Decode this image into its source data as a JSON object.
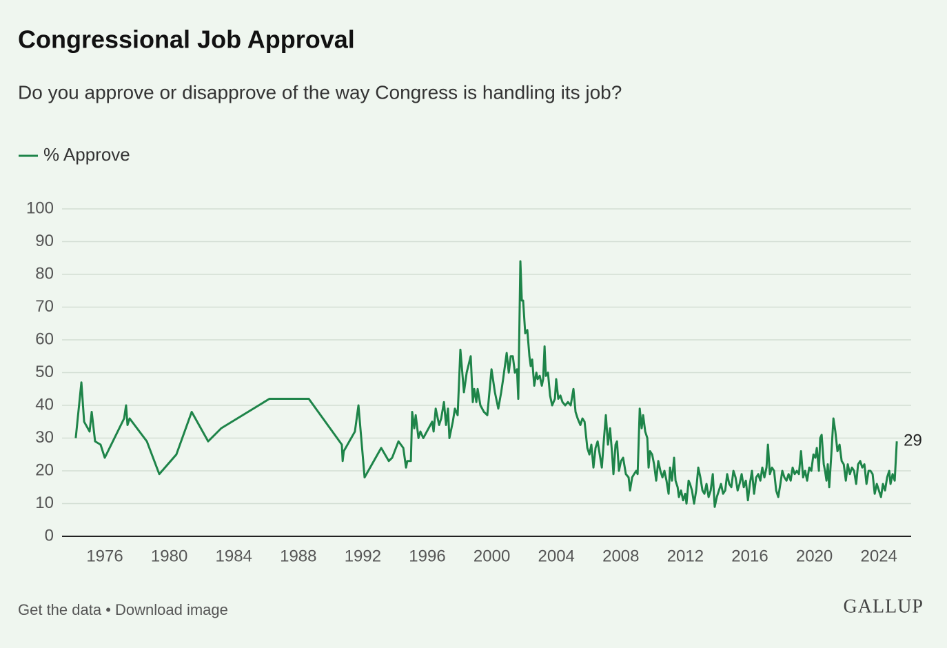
{
  "chart_data": {
    "type": "line",
    "title": "Congressional Job Approval",
    "subtitle": "Do you approve or disapprove of the way Congress is handling its job?",
    "x": [
      1974.2,
      1974.55,
      1974.72,
      1975.06,
      1975.19,
      1975.4,
      1975.74,
      1976.0,
      1977.2,
      1977.32,
      1977.41,
      1977.54,
      1978.61,
      1979.38,
      1980.44,
      1981.39,
      1982.41,
      1983.22,
      1986.21,
      1988.65,
      1990.7,
      1990.75,
      1990.82,
      1991.51,
      1991.73,
      1992.11,
      1993.14,
      1993.61,
      1993.82,
      1994.21,
      1994.51,
      1994.68,
      1994.76,
      1994.98,
      1995.06,
      1995.19,
      1995.28,
      1995.45,
      1995.57,
      1995.75,
      1996.3,
      1996.39,
      1996.52,
      1996.73,
      1996.86,
      1997.03,
      1997.16,
      1997.28,
      1997.37,
      1997.58,
      1997.71,
      1997.88,
      1998.05,
      1998.27,
      1998.44,
      1998.69,
      1998.82,
      1998.91,
      1999.04,
      1999.12,
      1999.29,
      1999.51,
      1999.72,
      1999.98,
      2000.19,
      2000.4,
      2000.58,
      2000.7,
      2000.92,
      2001.05,
      2001.17,
      2001.3,
      2001.43,
      2001.56,
      2001.64,
      2001.77,
      2001.86,
      2001.94,
      2002.07,
      2002.2,
      2002.33,
      2002.41,
      2002.5,
      2002.63,
      2002.76,
      2002.84,
      2002.97,
      2003.1,
      2003.18,
      2003.27,
      2003.35,
      2003.48,
      2003.61,
      2003.74,
      2003.91,
      2003.99,
      2004.12,
      2004.25,
      2004.38,
      2004.55,
      2004.72,
      2004.89,
      2005.06,
      2005.19,
      2005.32,
      2005.49,
      2005.62,
      2005.75,
      2005.92,
      2006.05,
      2006.17,
      2006.3,
      2006.43,
      2006.56,
      2006.69,
      2006.82,
      2006.94,
      2007.07,
      2007.2,
      2007.33,
      2007.46,
      2007.54,
      2007.67,
      2007.76,
      2007.88,
      2008.01,
      2008.14,
      2008.31,
      2008.48,
      2008.57,
      2008.7,
      2008.82,
      2008.95,
      2009.04,
      2009.17,
      2009.29,
      2009.38,
      2009.51,
      2009.64,
      2009.72,
      2009.81,
      2009.94,
      2010.06,
      2010.19,
      2010.32,
      2010.45,
      2010.58,
      2010.7,
      2010.83,
      2010.96,
      2011.05,
      2011.17,
      2011.3,
      2011.39,
      2011.52,
      2011.6,
      2011.73,
      2011.86,
      2011.99,
      2012.07,
      2012.2,
      2012.29,
      2012.41,
      2012.54,
      2012.67,
      2012.8,
      2012.93,
      2013.06,
      2013.18,
      2013.31,
      2013.44,
      2013.57,
      2013.7,
      2013.82,
      2013.95,
      2014.08,
      2014.21,
      2014.34,
      2014.47,
      2014.59,
      2014.72,
      2014.85,
      2014.98,
      2015.11,
      2015.24,
      2015.36,
      2015.49,
      2015.62,
      2015.75,
      2015.88,
      2016.0,
      2016.13,
      2016.26,
      2016.39,
      2016.52,
      2016.65,
      2016.77,
      2016.9,
      2017.03,
      2017.12,
      2017.24,
      2017.37,
      2017.5,
      2017.63,
      2017.76,
      2017.89,
      2018.01,
      2018.14,
      2018.27,
      2018.4,
      2018.53,
      2018.65,
      2018.78,
      2018.91,
      2019.04,
      2019.17,
      2019.3,
      2019.42,
      2019.55,
      2019.68,
      2019.81,
      2019.94,
      2020.06,
      2020.15,
      2020.28,
      2020.36,
      2020.45,
      2020.58,
      2020.66,
      2020.75,
      2020.83,
      2020.92,
      2021.05,
      2021.18,
      2021.3,
      2021.43,
      2021.56,
      2021.69,
      2021.82,
      2021.95,
      2022.07,
      2022.2,
      2022.33,
      2022.46,
      2022.59,
      2022.71,
      2022.84,
      2022.97,
      2023.1,
      2023.23,
      2023.36,
      2023.48,
      2023.61,
      2023.74,
      2023.87,
      2024.0,
      2024.13,
      2024.25,
      2024.38,
      2024.51,
      2024.64,
      2024.72,
      2024.85,
      2024.98,
      2025.11
    ],
    "series": [
      {
        "name": "% Approve",
        "color": "#1e8449",
        "values": [
          30,
          47,
          35,
          32,
          38,
          29,
          28,
          24,
          36,
          40,
          34,
          36,
          29,
          19,
          25,
          38,
          29,
          33,
          42,
          42,
          28,
          23,
          26,
          32,
          40,
          18,
          27,
          23,
          24,
          29,
          27,
          21,
          23,
          23,
          38,
          33,
          37,
          30,
          32,
          30,
          35,
          32,
          39,
          34,
          36,
          41,
          34,
          39,
          30,
          35,
          39,
          37,
          57,
          44,
          50,
          55,
          41,
          45,
          41,
          45,
          40,
          38,
          37,
          51,
          44,
          39,
          44,
          48,
          56,
          50,
          55,
          55,
          50,
          51,
          42,
          84,
          72,
          72,
          62,
          63,
          55,
          52,
          54,
          46,
          50,
          48,
          49,
          46,
          48,
          58,
          49,
          50,
          43,
          40,
          42,
          48,
          42,
          43,
          41,
          40,
          41,
          40,
          45,
          38,
          36,
          34,
          36,
          35,
          27,
          25,
          28,
          21,
          27,
          29,
          25,
          21,
          29,
          37,
          28,
          33,
          25,
          19,
          28,
          29,
          20,
          23,
          24,
          19,
          18,
          14,
          18,
          19,
          20,
          19,
          39,
          33,
          37,
          32,
          30,
          21,
          26,
          25,
          22,
          17,
          23,
          20,
          18,
          20,
          17,
          13,
          21,
          17,
          24,
          17,
          15,
          12,
          14,
          11,
          13,
          10,
          17,
          16,
          14,
          10,
          14,
          21,
          18,
          14,
          13,
          16,
          12,
          14,
          19,
          9,
          12,
          14,
          16,
          13,
          14,
          19,
          16,
          15,
          20,
          18,
          14,
          16,
          19,
          15,
          17,
          11,
          16,
          20,
          13,
          18,
          19,
          17,
          21,
          18,
          21,
          28,
          19,
          21,
          20,
          14,
          12,
          16,
          20,
          18,
          17,
          19,
          17,
          21,
          19,
          20,
          19,
          26,
          18,
          20,
          17,
          21,
          20,
          25,
          24,
          27,
          20,
          30,
          31,
          22,
          20,
          17,
          22,
          15,
          25,
          36,
          32,
          26,
          28,
          23,
          22,
          17,
          22,
          19,
          21,
          20,
          16,
          22,
          23,
          21,
          22,
          16,
          20,
          20,
          19,
          13,
          16,
          14,
          12,
          16,
          14,
          18,
          20,
          16,
          19,
          17,
          29
        ]
      }
    ],
    "xlim": [
      1973.35,
      2026.0
    ],
    "xticks": [
      1976,
      1980,
      1984,
      1988,
      1992,
      1996,
      2000,
      2004,
      2008,
      2012,
      2016,
      2020,
      2024
    ],
    "ylim": [
      0,
      100
    ],
    "yticks": [
      0,
      10,
      20,
      30,
      40,
      50,
      60,
      70,
      80,
      90,
      100
    ],
    "grid": true,
    "legend": "top-left"
  },
  "footer": {
    "links": "Get the data • Download image",
    "logo": "GALLUP"
  }
}
